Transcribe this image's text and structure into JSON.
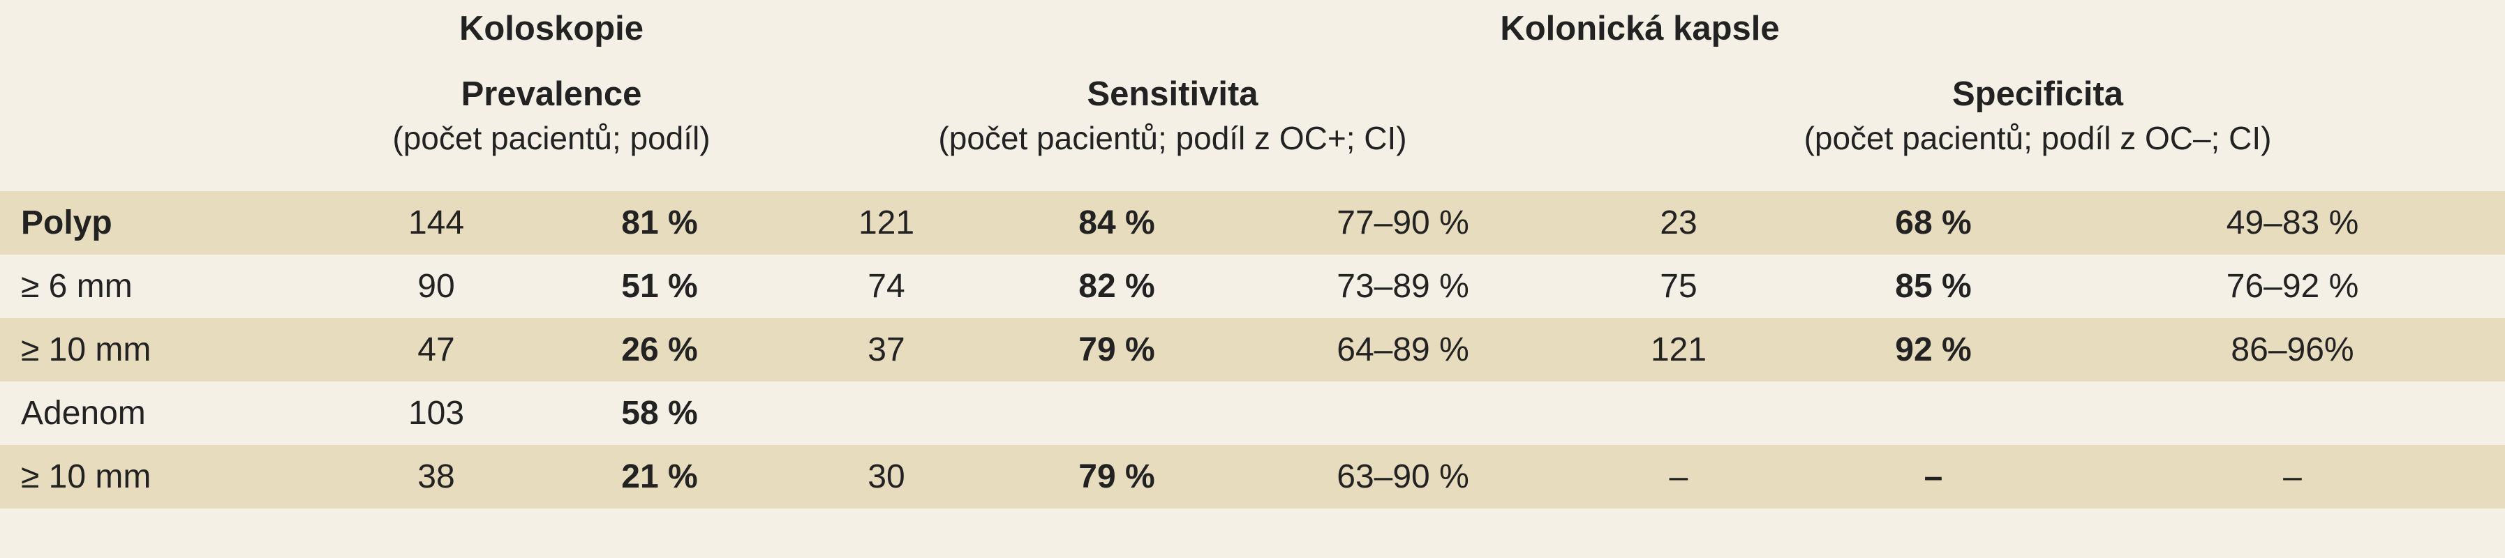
{
  "header": {
    "coloscopy_title": "Koloskopie",
    "capsule_title": "Kolonická kapsle",
    "prevalence_title": "Prevalence",
    "prevalence_note": "(počet pacientů; podíl)",
    "sensitivity_title": "Sensitivita",
    "sensitivity_note": "(počet pacientů; podíl z OC+; CI)",
    "specificity_title": "Specificita",
    "specificity_note": "(počet pacientů; podíl z OC–; CI)"
  },
  "rows": [
    {
      "label": "Polyp",
      "prev_n": "144",
      "prev_pct": "81 %",
      "sens_n": "121",
      "sens_pct": "84 %",
      "sens_ci": "77–90 %",
      "spec_n": "23",
      "spec_pct": "68 %",
      "spec_ci": "49–83 %"
    },
    {
      "label": "≥ 6 mm",
      "prev_n": "90",
      "prev_pct": "51 %",
      "sens_n": "74",
      "sens_pct": "82 %",
      "sens_ci": "73–89 %",
      "spec_n": "75",
      "spec_pct": "85 %",
      "spec_ci": "76–92 %"
    },
    {
      "label": "≥ 10 mm",
      "prev_n": "47",
      "prev_pct": "26 %",
      "sens_n": "37",
      "sens_pct": "79 %",
      "sens_ci": "64–89 %",
      "spec_n": "121",
      "spec_pct": "92 %",
      "spec_ci": "86–96%"
    },
    {
      "label": "Adenom",
      "prev_n": "103",
      "prev_pct": "58 %",
      "sens_n": "",
      "sens_pct": "",
      "sens_ci": "",
      "spec_n": "",
      "spec_pct": "",
      "spec_ci": ""
    },
    {
      "label": "≥ 10 mm",
      "prev_n": "38",
      "prev_pct": "21 %",
      "sens_n": "30",
      "sens_pct": "79 %",
      "sens_ci": "63–90 %",
      "spec_n": "–",
      "spec_pct": "–",
      "spec_ci": "–"
    }
  ],
  "colors": {
    "shaded_row": "#e7dcbe",
    "plain_row": "#f4f0e6",
    "text": "#222222"
  }
}
